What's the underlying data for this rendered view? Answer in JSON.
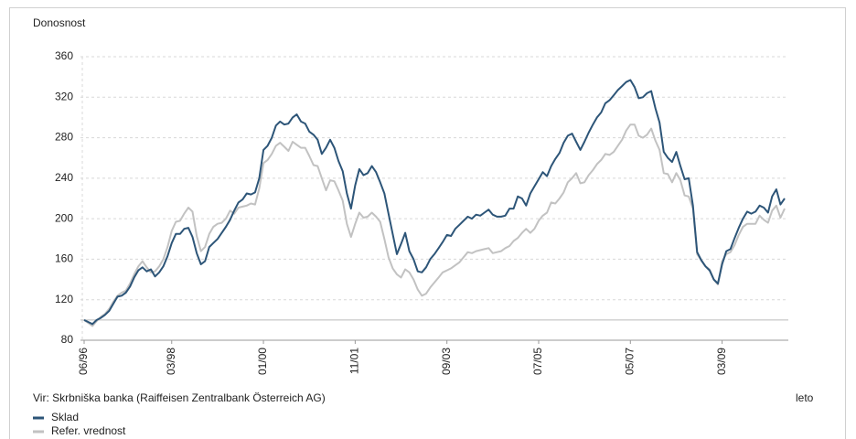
{
  "chart_data": {
    "type": "line",
    "y_label": "Donosnost",
    "x_label": "leto",
    "source": "Vir: Skrbniška banka (Raiffeisen Zentralbank Österreich AG)",
    "categories": [
      "06/96",
      null,
      null,
      null,
      null,
      null,
      null,
      null,
      null,
      null,
      null,
      null,
      null,
      null,
      null,
      null,
      null,
      null,
      null,
      null,
      null,
      "03/98",
      null,
      null,
      null,
      null,
      null,
      null,
      null,
      null,
      null,
      null,
      null,
      null,
      null,
      null,
      null,
      null,
      null,
      null,
      null,
      null,
      null,
      "01/00",
      null,
      null,
      null,
      null,
      null,
      null,
      null,
      null,
      null,
      null,
      null,
      null,
      null,
      null,
      null,
      null,
      null,
      null,
      null,
      null,
      null,
      "11/01",
      null,
      null,
      null,
      null,
      null,
      null,
      null,
      null,
      null,
      null,
      null,
      null,
      null,
      null,
      null,
      null,
      null,
      null,
      null,
      null,
      null,
      "09/03",
      null,
      null,
      null,
      null,
      null,
      null,
      null,
      null,
      null,
      null,
      null,
      null,
      null,
      null,
      null,
      null,
      null,
      null,
      null,
      null,
      null,
      "07/05",
      null,
      null,
      null,
      null,
      null,
      null,
      null,
      null,
      null,
      null,
      null,
      null,
      null,
      null,
      null,
      null,
      null,
      null,
      null,
      null,
      null,
      "05/07",
      null,
      null,
      null,
      null,
      null,
      null,
      null,
      null,
      null,
      null,
      null,
      null,
      null,
      null,
      null,
      null,
      null,
      null,
      null,
      null,
      null,
      "03/09",
      null,
      null,
      null,
      null,
      null,
      null,
      null,
      null,
      null,
      null,
      null,
      null,
      null,
      null,
      null
    ],
    "series": [
      {
        "name": "Sklad",
        "color": "#2d5578",
        "values": [
          100,
          98,
          96,
          100,
          102,
          105,
          109,
          116,
          123,
          124,
          127,
          133,
          142,
          149,
          152,
          148,
          150,
          143,
          147,
          153,
          163,
          176,
          185,
          185,
          190,
          191,
          182,
          166,
          155,
          158,
          172,
          176,
          180,
          186,
          192,
          199,
          208,
          216,
          219,
          225,
          224,
          226,
          240,
          268,
          272,
          280,
          292,
          296,
          293,
          294,
          300,
          303,
          296,
          294,
          286,
          283,
          278,
          264,
          270,
          278,
          270,
          257,
          247,
          225,
          210,
          233,
          249,
          243,
          245,
          252,
          246,
          236,
          225,
          205,
          185,
          165,
          175,
          186,
          168,
          160,
          148,
          147,
          152,
          160,
          165,
          171,
          177,
          184,
          183,
          190,
          194,
          198,
          202,
          200,
          204,
          203,
          206,
          209,
          204,
          202,
          202,
          203,
          210,
          210,
          222,
          220,
          213,
          225,
          232,
          239,
          246,
          242,
          252,
          259,
          265,
          275,
          282,
          284,
          276,
          268,
          276,
          285,
          293,
          300,
          305,
          314,
          317,
          322,
          327,
          331,
          335,
          337,
          330,
          319,
          320,
          324,
          326,
          309,
          295,
          266,
          260,
          256,
          266,
          252,
          239,
          240,
          213,
          167,
          159,
          153,
          149,
          140,
          136,
          155,
          168,
          170,
          181,
          191,
          200,
          207,
          205,
          207,
          213,
          211,
          206,
          222,
          229,
          214,
          220
        ]
      },
      {
        "name": "Refer. vrednost",
        "color": "#c2c2c2",
        "values": [
          100,
          97,
          94,
          99,
          103,
          106,
          111,
          118,
          124,
          127,
          129,
          136,
          145,
          153,
          158,
          152,
          147,
          148,
          153,
          160,
          172,
          188,
          197,
          198,
          205,
          211,
          207,
          183,
          168,
          172,
          185,
          192,
          195,
          196,
          200,
          208,
          205,
          211,
          212,
          213,
          215,
          214,
          230,
          255,
          258,
          264,
          272,
          275,
          271,
          267,
          276,
          273,
          270,
          270,
          262,
          253,
          252,
          240,
          228,
          238,
          237,
          228,
          218,
          195,
          182,
          195,
          206,
          201,
          202,
          206,
          202,
          197,
          180,
          162,
          151,
          145,
          142,
          150,
          147,
          140,
          130,
          124,
          126,
          132,
          137,
          142,
          147,
          149,
          151,
          154,
          157,
          162,
          167,
          166,
          168,
          169,
          170,
          171,
          166,
          167,
          168,
          171,
          173,
          178,
          181,
          186,
          190,
          186,
          190,
          198,
          203,
          206,
          216,
          215,
          220,
          226,
          236,
          240,
          245,
          235,
          236,
          243,
          248,
          254,
          258,
          264,
          263,
          266,
          272,
          278,
          287,
          293,
          293,
          282,
          280,
          283,
          289,
          277,
          268,
          245,
          244,
          236,
          245,
          238,
          223,
          222,
          210,
          165,
          159,
          153,
          150,
          140,
          135,
          158,
          165,
          167,
          174,
          184,
          192,
          195,
          195,
          195,
          203,
          199,
          196,
          208,
          213,
          201,
          210
        ]
      }
    ],
    "ylim": [
      80,
      360
    ],
    "yticks": [
      80,
      120,
      160,
      200,
      240,
      280,
      320,
      360
    ],
    "baseline": 100,
    "grid": true
  }
}
